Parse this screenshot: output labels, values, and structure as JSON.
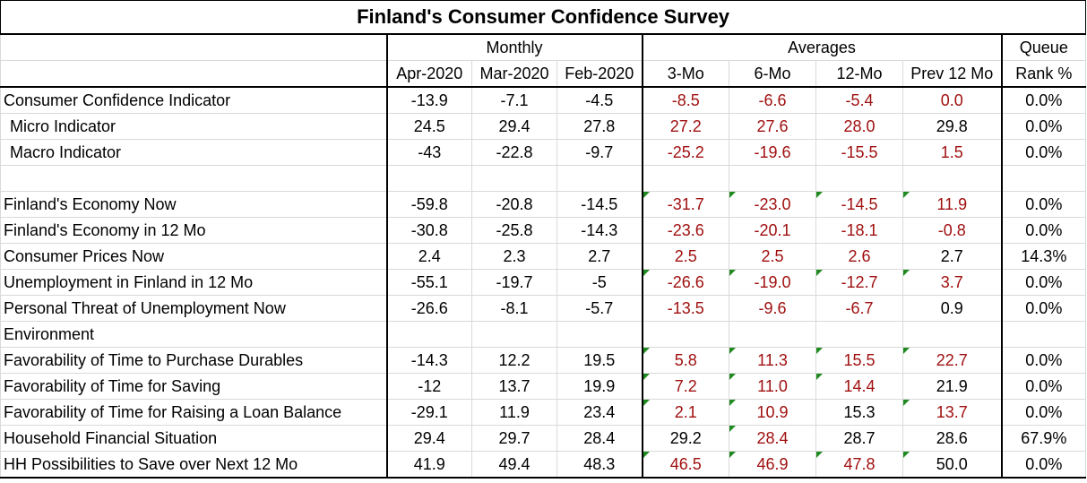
{
  "title": "Finland's Consumer Confidence Survey",
  "groups": {
    "monthly": "Monthly",
    "averages": "Averages",
    "queue": "Queue"
  },
  "columns": [
    "Apr-2020",
    "Mar-2020",
    "Feb-2020",
    "3-Mo",
    "6-Mo",
    "12-Mo",
    "Prev 12 Mo",
    "Rank %"
  ],
  "rows": [
    {
      "label": "Consumer Confidence Indicator",
      "indent": false,
      "values": [
        "-13.9",
        "-7.1",
        "-4.5",
        "-8.5",
        "-6.6",
        "-5.4",
        "0.0",
        "0.0%"
      ],
      "red": [
        3,
        4,
        5,
        6
      ],
      "flags": []
    },
    {
      "label": "Micro Indicator",
      "indent": true,
      "values": [
        "24.5",
        "29.4",
        "27.8",
        "27.2",
        "27.6",
        "28.0",
        "29.8",
        "0.0%"
      ],
      "red": [
        3,
        4,
        5
      ],
      "flags": []
    },
    {
      "label": "Macro Indicator",
      "indent": true,
      "values": [
        "-43",
        "-22.8",
        "-9.7",
        "-25.2",
        "-19.6",
        "-15.5",
        "1.5",
        "0.0%"
      ],
      "red": [
        3,
        4,
        5,
        6
      ],
      "flags": []
    },
    {
      "label": "",
      "indent": false,
      "values": [
        "",
        "",
        "",
        "",
        "",
        "",
        "",
        ""
      ],
      "red": [],
      "flags": []
    },
    {
      "label": "Finland's Economy Now",
      "indent": false,
      "values": [
        "-59.8",
        "-20.8",
        "-14.5",
        "-31.7",
        "-23.0",
        "-14.5",
        "11.9",
        "0.0%"
      ],
      "red": [
        3,
        4,
        5,
        6
      ],
      "flags": [
        3,
        4,
        5,
        6
      ]
    },
    {
      "label": "Finland's Economy in 12 Mo",
      "indent": false,
      "values": [
        "-30.8",
        "-25.8",
        "-14.3",
        "-23.6",
        "-20.1",
        "-18.1",
        "-0.8",
        "0.0%"
      ],
      "red": [
        3,
        4,
        5,
        6
      ],
      "flags": []
    },
    {
      "label": "Consumer Prices Now",
      "indent": false,
      "values": [
        "2.4",
        "2.3",
        "2.7",
        "2.5",
        "2.5",
        "2.6",
        "2.7",
        "14.3%"
      ],
      "red": [
        3,
        4,
        5
      ],
      "flags": []
    },
    {
      "label": "Unemployment in Finland in 12 Mo",
      "indent": false,
      "values": [
        "-55.1",
        "-19.7",
        "-5",
        "-26.6",
        "-19.0",
        "-12.7",
        "3.7",
        "0.0%"
      ],
      "red": [
        3,
        4,
        5,
        6
      ],
      "flags": [
        3,
        4,
        5,
        6
      ]
    },
    {
      "label": "Personal Threat of Unemployment Now",
      "indent": false,
      "values": [
        "-26.6",
        "-8.1",
        "-5.7",
        "-13.5",
        "-9.6",
        "-6.7",
        "0.9",
        "0.0%"
      ],
      "red": [
        3,
        4,
        5
      ],
      "flags": []
    },
    {
      "label": "Environment",
      "indent": false,
      "values": [
        "",
        "",
        "",
        "",
        "",
        "",
        "",
        ""
      ],
      "red": [],
      "flags": []
    },
    {
      "label": "Favorability of Time to Purchase Durables",
      "indent": false,
      "values": [
        "-14.3",
        "12.2",
        "19.5",
        "5.8",
        "11.3",
        "15.5",
        "22.7",
        "0.0%"
      ],
      "red": [
        3,
        4,
        5,
        6
      ],
      "flags": [
        3,
        4,
        5,
        6
      ]
    },
    {
      "label": "Favorability of Time for Saving",
      "indent": false,
      "values": [
        "-12",
        "13.7",
        "19.9",
        "7.2",
        "11.0",
        "14.4",
        "21.9",
        "0.0%"
      ],
      "red": [
        3,
        4,
        5
      ],
      "flags": [
        3,
        4,
        5
      ]
    },
    {
      "label": "Favorability of Time for Raising a Loan Balance",
      "indent": false,
      "values": [
        "-29.1",
        "11.9",
        "23.4",
        "2.1",
        "10.9",
        "15.3",
        "13.7",
        "0.0%"
      ],
      "red": [
        3,
        4,
        6
      ],
      "flags": [
        3,
        4,
        6
      ]
    },
    {
      "label": "Household Financial Situation",
      "indent": false,
      "values": [
        "29.4",
        "29.7",
        "28.4",
        "29.2",
        "28.4",
        "28.7",
        "28.6",
        "67.9%"
      ],
      "red": [
        4
      ],
      "flags": [
        4
      ]
    },
    {
      "label": "HH Possibilities to Save over Next 12 Mo",
      "indent": false,
      "values": [
        "41.9",
        "49.4",
        "48.3",
        "46.5",
        "46.9",
        "47.8",
        "50.0",
        "0.0%"
      ],
      "red": [
        3,
        4,
        5
      ],
      "flags": [
        3,
        4,
        5,
        6
      ]
    }
  ],
  "colors": {
    "text": "#000000",
    "negative_text": "#a01010",
    "flag": "#1f8a1f",
    "gridline": "#d9d9d9"
  }
}
